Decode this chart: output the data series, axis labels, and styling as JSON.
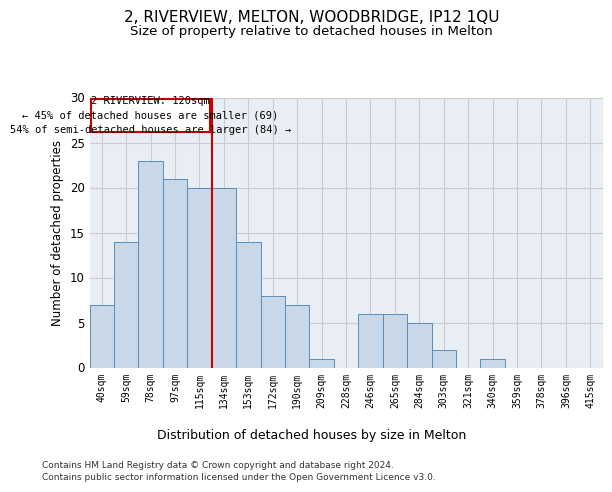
{
  "title_main": "2, RIVERVIEW, MELTON, WOODBRIDGE, IP12 1QU",
  "title_sub": "Size of property relative to detached houses in Melton",
  "xlabel": "Distribution of detached houses by size in Melton",
  "ylabel": "Number of detached properties",
  "bar_labels": [
    "40sqm",
    "59sqm",
    "78sqm",
    "97sqm",
    "115sqm",
    "134sqm",
    "153sqm",
    "172sqm",
    "190sqm",
    "209sqm",
    "228sqm",
    "246sqm",
    "265sqm",
    "284sqm",
    "303sqm",
    "321sqm",
    "340sqm",
    "359sqm",
    "378sqm",
    "396sqm",
    "415sqm"
  ],
  "bar_values": [
    7,
    14,
    23,
    21,
    20,
    20,
    14,
    8,
    7,
    1,
    0,
    6,
    6,
    5,
    2,
    0,
    1,
    0,
    0,
    0,
    0
  ],
  "bar_color": "#c8d8e8",
  "bar_edgecolor": "#5b8db8",
  "vline_x": 4.5,
  "vline_color": "#cc0000",
  "annotation_text": "2 RIVERVIEW: 120sqm\n← 45% of detached houses are smaller (69)\n54% of semi-detached houses are larger (84) →",
  "annotation_box_color": "#cc0000",
  "annotation_box_fill": "#ffffff",
  "annotation_fontsize": 7.5,
  "ylim": [
    0,
    30
  ],
  "yticks": [
    0,
    5,
    10,
    15,
    20,
    25,
    30
  ],
  "grid_color": "#cccccc",
  "bg_color": "#e8eef4",
  "footer1": "Contains HM Land Registry data © Crown copyright and database right 2024.",
  "footer2": "Contains public sector information licensed under the Open Government Licence v3.0.",
  "title_main_fontsize": 11,
  "title_sub_fontsize": 9.5,
  "xlabel_fontsize": 9,
  "ylabel_fontsize": 8.5
}
